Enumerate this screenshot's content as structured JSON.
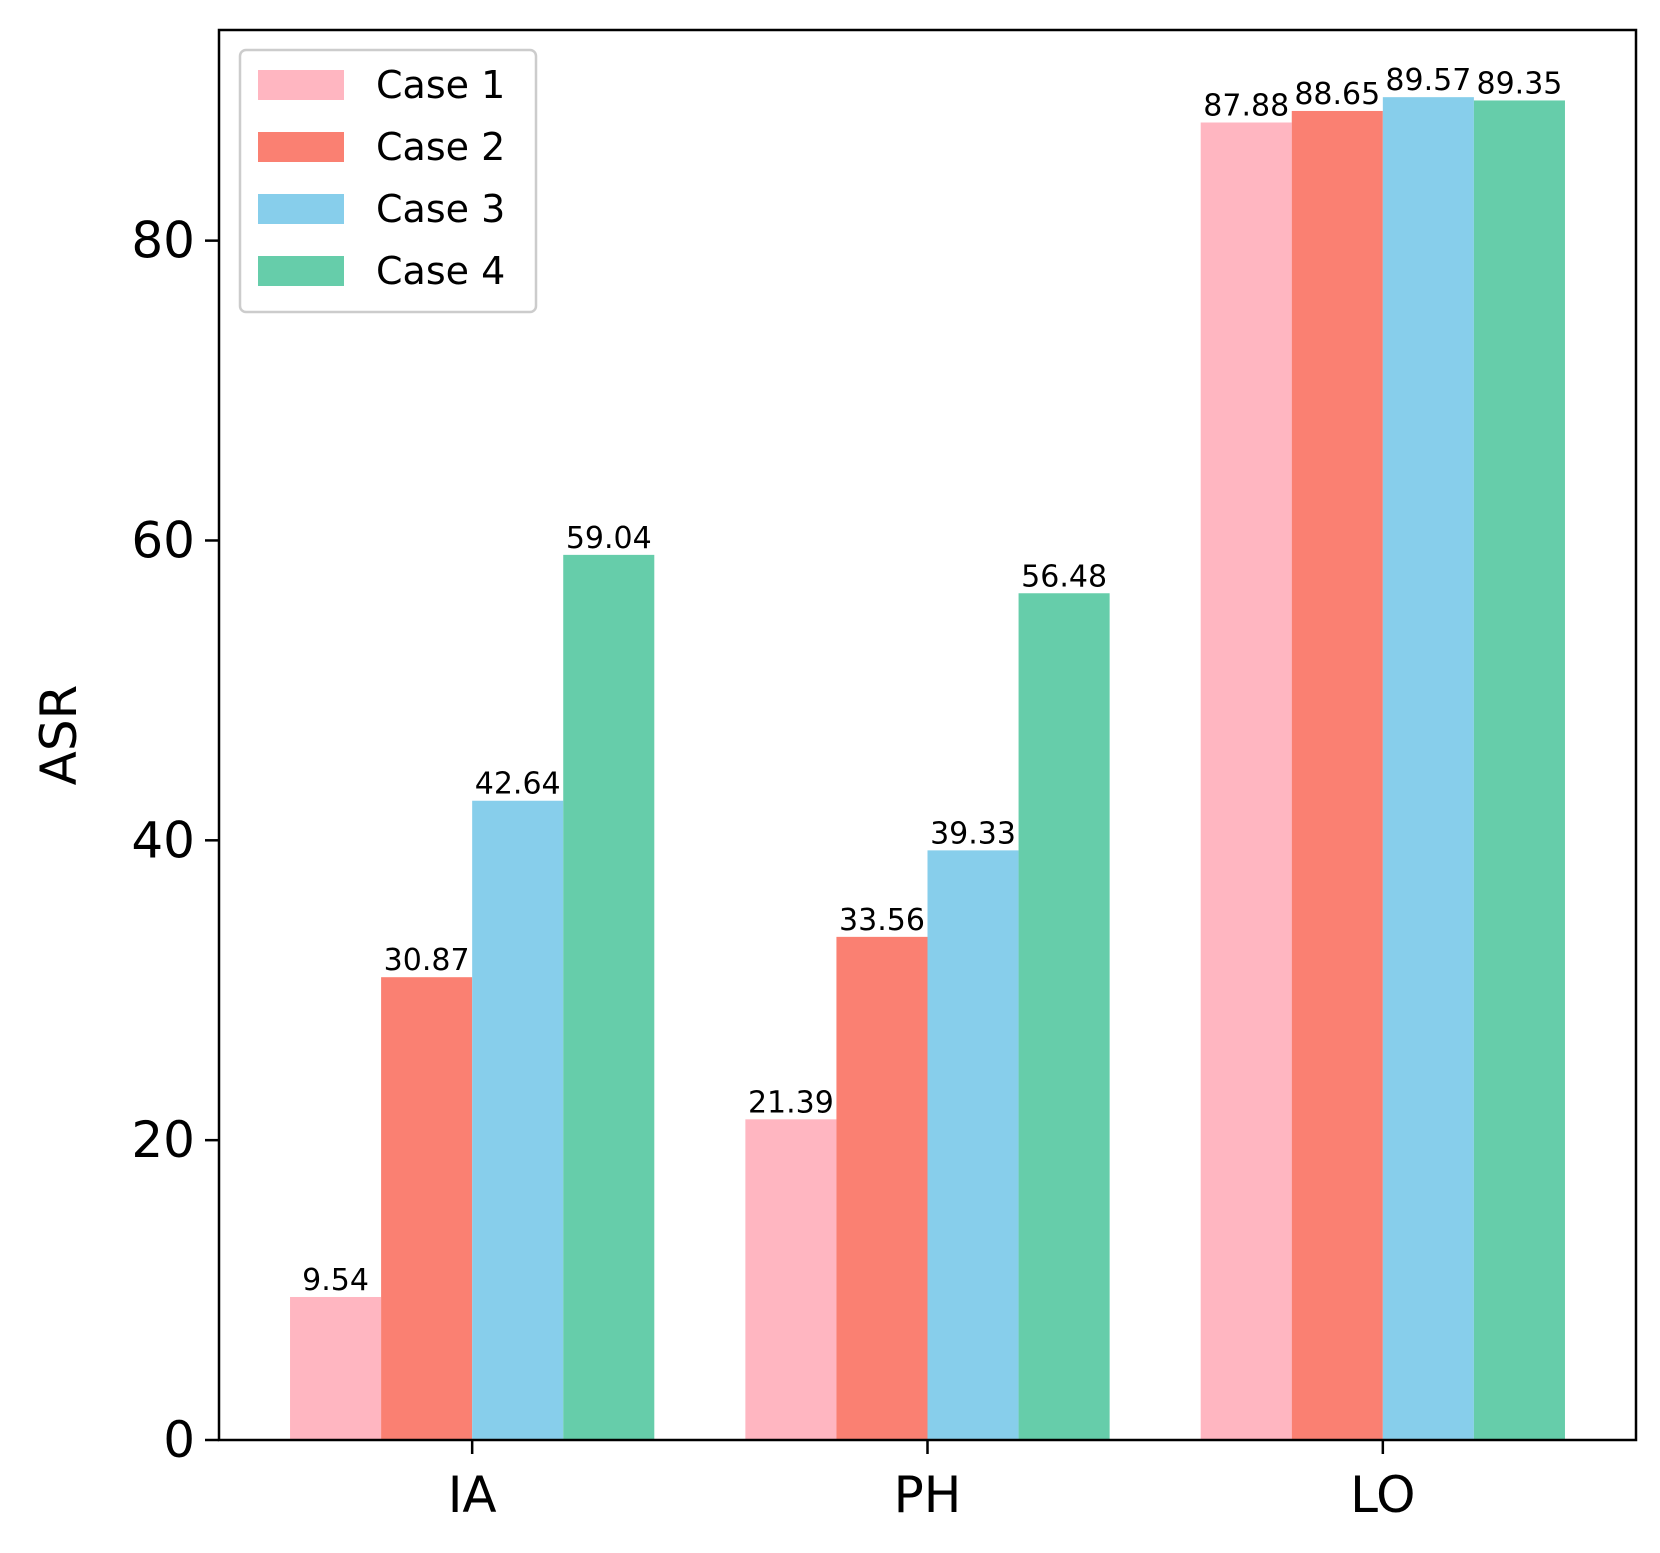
{
  "chart_data": {
    "type": "bar",
    "title": "",
    "xlabel": "",
    "ylabel": "ASR",
    "categories": [
      "IA",
      "PH",
      "LO"
    ],
    "series": [
      {
        "name": "Case 1",
        "color": "#FFB6C1",
        "values": [
          9.54,
          21.39,
          87.88
        ]
      },
      {
        "name": "Case 2",
        "color": "#FA8072",
        "values": [
          30.87,
          33.56,
          88.65
        ]
      },
      {
        "name": "Case 3",
        "color": "#87CEEB",
        "values": [
          42.64,
          39.33,
          89.57
        ]
      },
      {
        "name": "Case 4",
        "color": "#66CDAA",
        "values": [
          59.04,
          56.48,
          89.35
        ]
      }
    ],
    "yticks": [
      0,
      20,
      40,
      60,
      80
    ],
    "ytick_labels": [
      "0",
      "20",
      "40",
      "60",
      "80"
    ],
    "ylim": [
      0,
      94.05
    ],
    "grid": false,
    "legend_position": "top-left"
  }
}
